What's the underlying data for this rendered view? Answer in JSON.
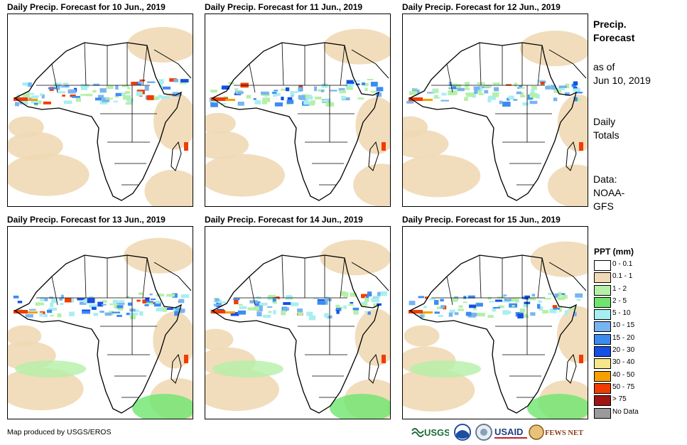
{
  "panels": [
    {
      "title": "Daily Precip. Forecast for 10 Jun., 2019"
    },
    {
      "title": "Daily Precip. Forecast for 11 Jun., 2019"
    },
    {
      "title": "Daily Precip. Forecast for 12 Jun., 2019"
    },
    {
      "title": "Daily Precip. Forecast for 13 Jun., 2019"
    },
    {
      "title": "Daily Precip. Forecast for 14 Jun., 2019"
    },
    {
      "title": "Daily Precip. Forecast for 15 Jun., 2019"
    }
  ],
  "side": {
    "title_line1": "Precip.",
    "title_line2": "Forecast",
    "asof_line1": "as of",
    "asof_line2": "Jun 10, 2019",
    "totals_line1": "Daily",
    "totals_line2": "Totals",
    "data_line1": "Data:",
    "data_line2": "NOAA-",
    "data_line3": "GFS"
  },
  "legend": {
    "title": "PPT (mm)",
    "items": [
      {
        "label": "0 - 0.1",
        "color": "#ffffff"
      },
      {
        "label": "0.1 - 1",
        "color": "#f0d9b5"
      },
      {
        "label": "1 - 2",
        "color": "#b4f0a8"
      },
      {
        "label": "2 - 5",
        "color": "#6ee66e"
      },
      {
        "label": "5 - 10",
        "color": "#a8eef0"
      },
      {
        "label": "10 - 15",
        "color": "#78b4f0"
      },
      {
        "label": "15 - 20",
        "color": "#3c8cf0"
      },
      {
        "label": "20 - 30",
        "color": "#1450e6"
      },
      {
        "label": "30 - 40",
        "color": "#f5e68c"
      },
      {
        "label": "40 - 50",
        "color": "#f5a000"
      },
      {
        "label": "50 - 75",
        "color": "#f03c00"
      },
      {
        "label": "> 75",
        "color": "#a01414"
      },
      {
        "label": "No Data",
        "color": "#9a9a9a"
      }
    ]
  },
  "credit": "Map produced by USGS/EROS",
  "logos": {
    "usgs": "USGS",
    "usaid": "USAID",
    "fewsnet": "FEWS NET"
  }
}
